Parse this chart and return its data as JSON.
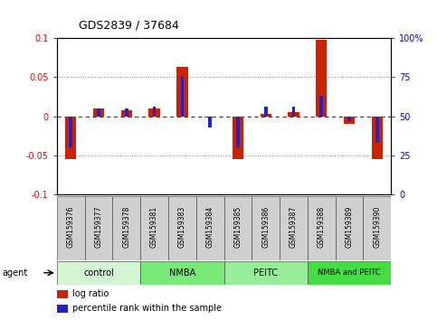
{
  "title": "GDS2839 / 37684",
  "samples": [
    "GSM159376",
    "GSM159377",
    "GSM159378",
    "GSM159381",
    "GSM159383",
    "GSM159384",
    "GSM159385",
    "GSM159386",
    "GSM159387",
    "GSM159388",
    "GSM159389",
    "GSM159390"
  ],
  "log_ratio": [
    -0.055,
    0.01,
    0.008,
    0.01,
    0.063,
    -0.002,
    -0.055,
    0.003,
    0.005,
    0.098,
    -0.01,
    -0.055
  ],
  "percentile_rank": [
    30,
    55,
    55,
    56,
    75,
    43,
    30,
    56,
    56,
    63,
    47,
    33
  ],
  "groups": [
    {
      "label": "control",
      "start": 0,
      "end": 3,
      "color": "#d4f5d4"
    },
    {
      "label": "NMBA",
      "start": 3,
      "end": 6,
      "color": "#78e878"
    },
    {
      "label": "PEITC",
      "start": 6,
      "end": 9,
      "color": "#98ee98"
    },
    {
      "label": "NMBA and PEITC",
      "start": 9,
      "end": 12,
      "color": "#44dd44"
    }
  ],
  "ylim": [
    -0.1,
    0.1
  ],
  "yticks_left": [
    -0.1,
    -0.05,
    0,
    0.05,
    0.1
  ],
  "yticks_right": [
    0,
    25,
    50,
    75,
    100
  ],
  "bar_color": "#cc2200",
  "pct_color": "#2222cc",
  "legend_red": "log ratio",
  "legend_blue": "percentile rank within the sample",
  "agent_label": "agent",
  "plot_facecolor": "#ffffff",
  "label_facecolor": "#d0d0d0"
}
